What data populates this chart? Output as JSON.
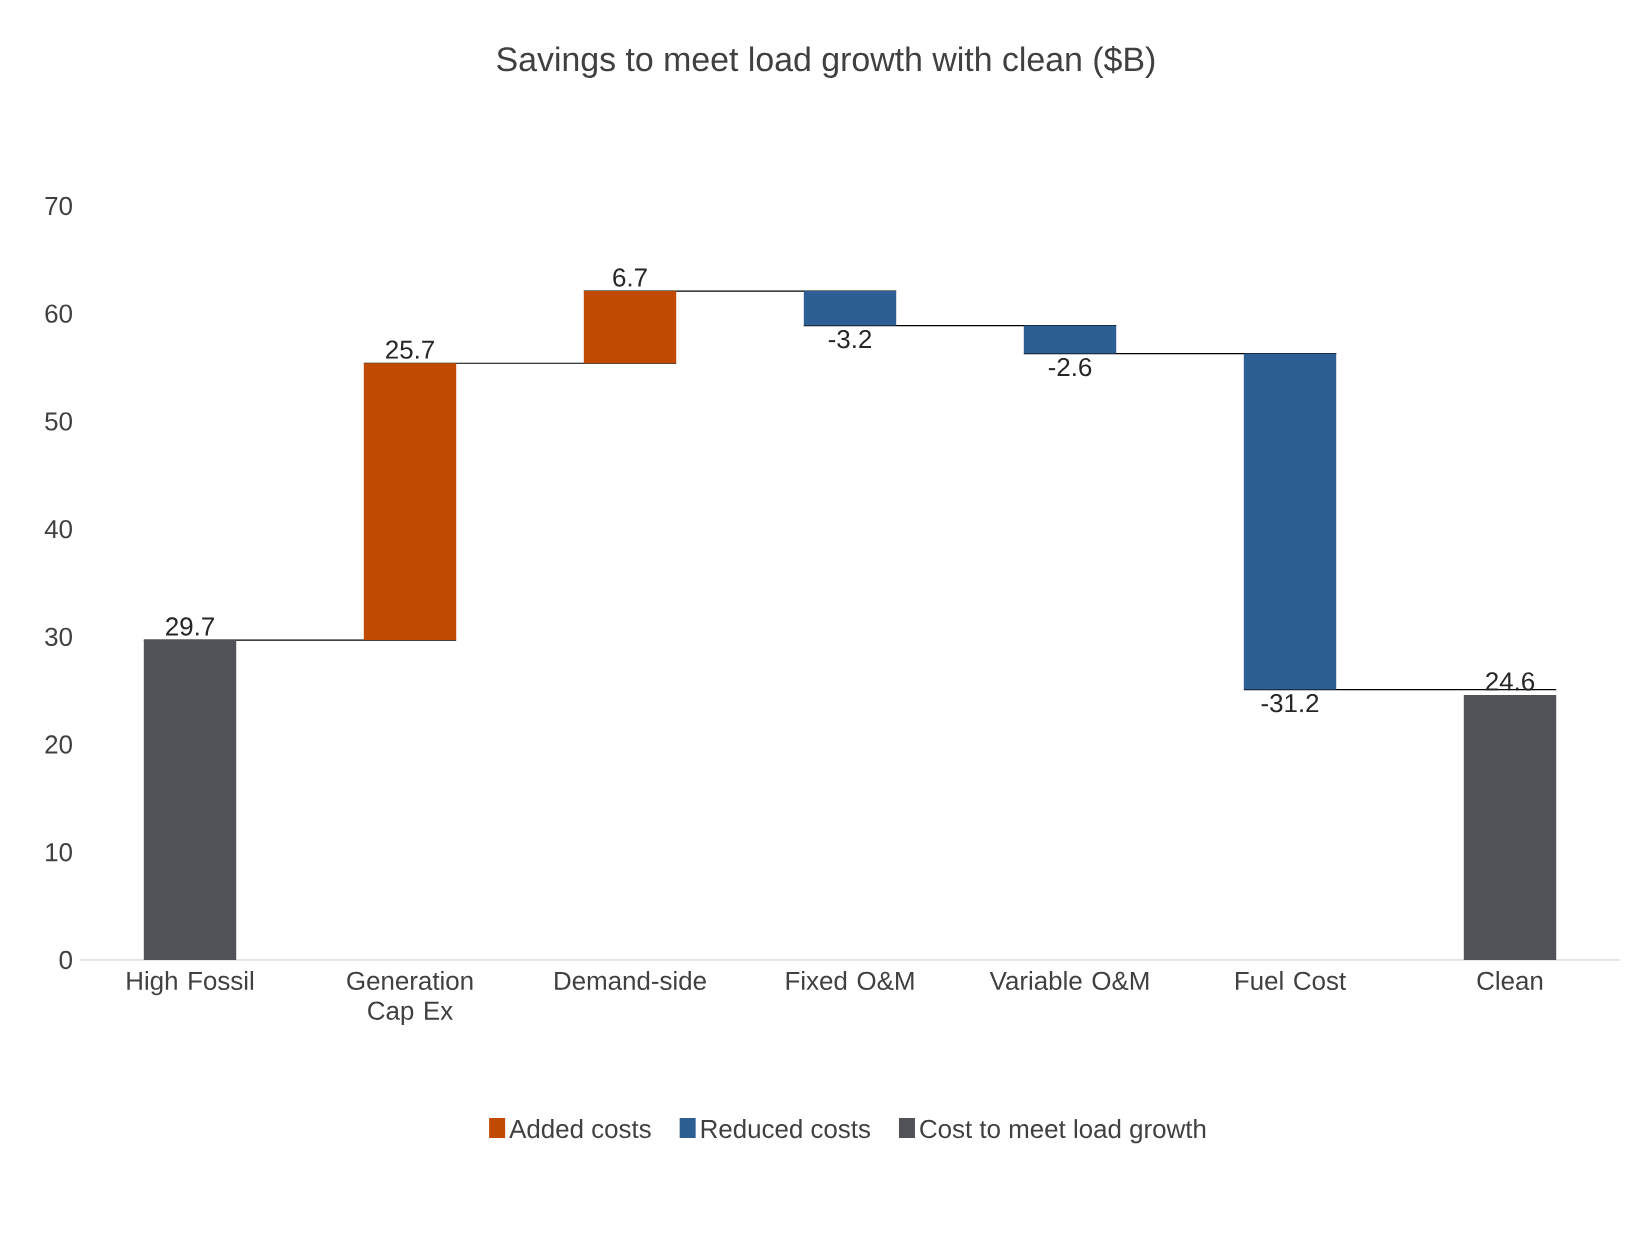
{
  "chart_data": {
    "type": "bar",
    "title": "Savings to meet load growth with clean ($B)",
    "categories": [
      "High Fossil",
      "Generation Cap Ex",
      "Demand-side",
      "Fixed O&M",
      "Variable O&M",
      "Fuel Cost",
      "Clean"
    ],
    "series": [
      {
        "name": "Added costs",
        "color": "#c04a00",
        "values": [
          null,
          25.7,
          6.7,
          null,
          null,
          null,
          null
        ],
        "base": [
          null,
          29.7,
          55.4,
          null,
          null,
          null,
          null
        ]
      },
      {
        "name": "Reduced costs",
        "color": "#2e5f94",
        "values": [
          null,
          null,
          null,
          -3.2,
          -2.6,
          -31.2,
          null
        ],
        "base": [
          null,
          null,
          null,
          62.1,
          58.9,
          56.3,
          null
        ]
      },
      {
        "name": "Cost to meet load growth",
        "color": "#505257",
        "values": [
          29.7,
          null,
          null,
          null,
          null,
          null,
          24.6
        ],
        "base": [
          0,
          null,
          null,
          null,
          null,
          null,
          0
        ]
      }
    ],
    "ylim": [
      0,
      70
    ],
    "yticks": [
      0,
      10,
      20,
      30,
      40,
      50,
      60,
      70
    ],
    "data_labels": true,
    "grid": false,
    "legend": "bottom"
  }
}
